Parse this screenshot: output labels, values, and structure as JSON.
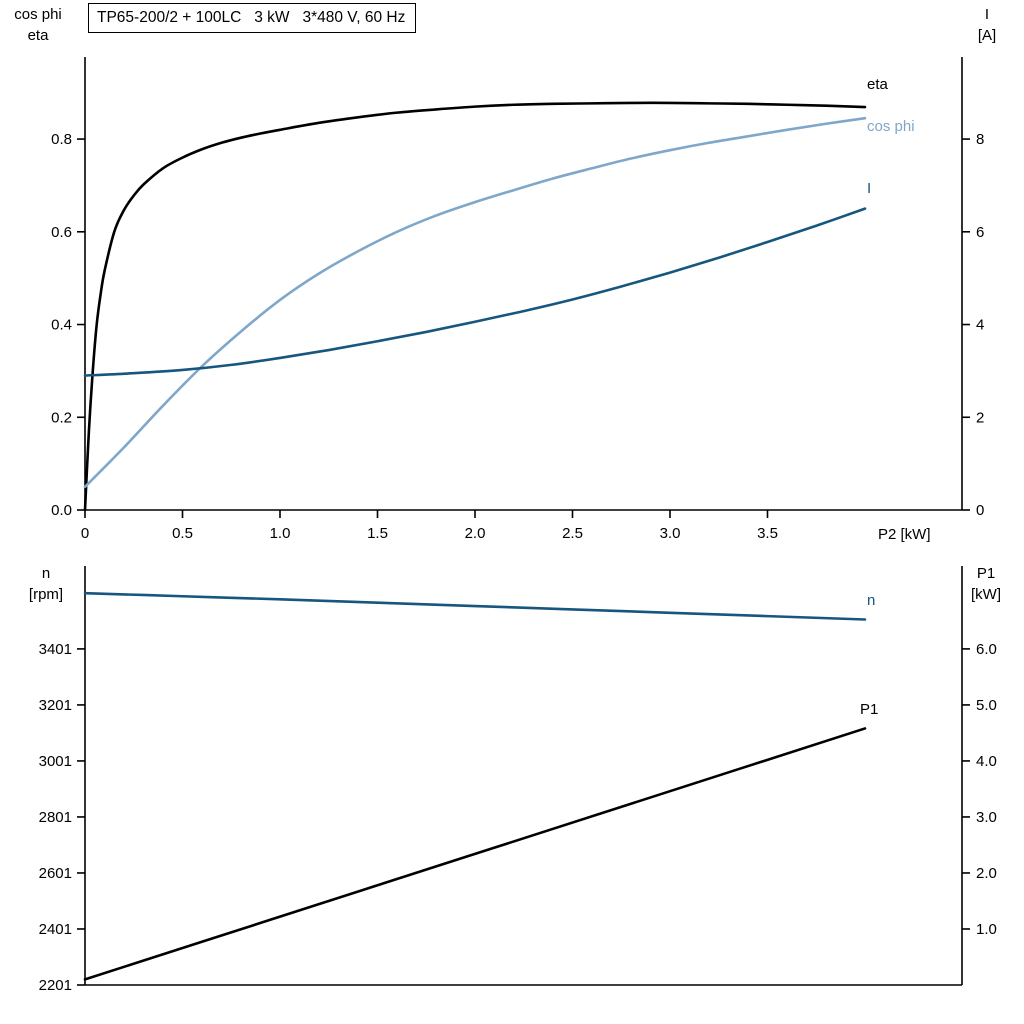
{
  "title_box": {
    "text": "TP65-200/2 + 100LC   3 kW   3*480 V, 60 Hz"
  },
  "colors": {
    "black": "#000000",
    "dark_blue": "#17567e",
    "light_blue": "#7fa7c9",
    "axis": "#000000"
  },
  "top_chart": {
    "left_axis_title": [
      "cos phi",
      "eta"
    ],
    "right_axis_title": [
      "I",
      "[A]"
    ],
    "x_axis_title": "P2 [kW]",
    "curve_labels": {
      "eta": "eta",
      "cos_phi": "cos phi",
      "current": "I"
    }
  },
  "bottom_chart": {
    "left_axis_title": [
      "n",
      "[rpm]"
    ],
    "right_axis_title": [
      "P1",
      "[kW]"
    ],
    "curve_labels": {
      "n": "n",
      "p1": "P1"
    }
  },
  "chart_data": [
    {
      "id": "top",
      "type": "line",
      "title": "TP65-200/2 + 100LC   3 kW   3*480 V, 60 Hz",
      "x_axis": {
        "label": "P2 [kW]",
        "range": [
          0,
          4.0
        ],
        "ticks": [
          0,
          0.5,
          1.0,
          1.5,
          2.0,
          2.5,
          3.0,
          3.5
        ],
        "tick_labels": [
          "0",
          "0.5",
          "1.0",
          "1.5",
          "2.0",
          "2.5",
          "3.0",
          "3.5"
        ]
      },
      "left_axis": {
        "label": "cos phi / eta",
        "range": [
          0,
          0.977
        ],
        "ticks": [
          0.0,
          0.2,
          0.4,
          0.6,
          0.8
        ],
        "tick_labels": [
          "0.0",
          "0.2",
          "0.4",
          "0.6",
          "0.8"
        ]
      },
      "right_axis": {
        "label": "I [A]",
        "range": [
          0,
          9.77
        ],
        "ticks": [
          0,
          2,
          4,
          6,
          8
        ],
        "tick_labels": [
          "0",
          "2",
          "4",
          "6",
          "8"
        ]
      },
      "legend_position": "right-of-curves",
      "grid": false,
      "series": [
        {
          "name": "eta",
          "axis": "left",
          "color": "#000000",
          "points": [
            [
              0,
              0
            ],
            [
              0.02,
              0.17
            ],
            [
              0.04,
              0.3
            ],
            [
              0.06,
              0.4
            ],
            [
              0.08,
              0.465
            ],
            [
              0.1,
              0.515
            ],
            [
              0.15,
              0.6
            ],
            [
              0.2,
              0.647
            ],
            [
              0.25,
              0.678
            ],
            [
              0.3,
              0.702
            ],
            [
              0.4,
              0.737
            ],
            [
              0.5,
              0.76
            ],
            [
              0.6,
              0.778
            ],
            [
              0.7,
              0.792
            ],
            [
              0.8,
              0.803
            ],
            [
              0.9,
              0.812
            ],
            [
              1.0,
              0.82
            ],
            [
              1.2,
              0.835
            ],
            [
              1.4,
              0.847
            ],
            [
              1.6,
              0.857
            ],
            [
              1.8,
              0.864
            ],
            [
              2.0,
              0.87
            ],
            [
              2.2,
              0.874
            ],
            [
              2.4,
              0.876
            ],
            [
              2.6,
              0.877
            ],
            [
              2.8,
              0.878
            ],
            [
              3.0,
              0.878
            ],
            [
              3.2,
              0.877
            ],
            [
              3.4,
              0.876
            ],
            [
              3.6,
              0.874
            ],
            [
              3.8,
              0.872
            ],
            [
              4.0,
              0.869
            ]
          ]
        },
        {
          "name": "cos phi",
          "axis": "left",
          "color": "#7fa7c9",
          "points": [
            [
              0,
              0.05
            ],
            [
              0.2,
              0.135
            ],
            [
              0.4,
              0.225
            ],
            [
              0.6,
              0.31
            ],
            [
              0.8,
              0.385
            ],
            [
              1.0,
              0.453
            ],
            [
              1.2,
              0.51
            ],
            [
              1.4,
              0.558
            ],
            [
              1.6,
              0.6
            ],
            [
              1.8,
              0.635
            ],
            [
              2.0,
              0.664
            ],
            [
              2.2,
              0.69
            ],
            [
              2.4,
              0.715
            ],
            [
              2.6,
              0.737
            ],
            [
              2.8,
              0.758
            ],
            [
              3.0,
              0.776
            ],
            [
              3.2,
              0.792
            ],
            [
              3.4,
              0.806
            ],
            [
              3.6,
              0.82
            ],
            [
              3.8,
              0.833
            ],
            [
              4.0,
              0.845
            ]
          ]
        },
        {
          "name": "I",
          "axis": "right",
          "color": "#17567e",
          "points": [
            [
              0,
              2.9
            ],
            [
              0.25,
              2.95
            ],
            [
              0.5,
              3.02
            ],
            [
              0.75,
              3.13
            ],
            [
              1.0,
              3.28
            ],
            [
              1.25,
              3.45
            ],
            [
              1.5,
              3.64
            ],
            [
              1.75,
              3.84
            ],
            [
              2.0,
              4.06
            ],
            [
              2.25,
              4.29
            ],
            [
              2.5,
              4.54
            ],
            [
              2.75,
              4.82
            ],
            [
              3.0,
              5.12
            ],
            [
              3.25,
              5.44
            ],
            [
              3.5,
              5.78
            ],
            [
              3.75,
              6.13
            ],
            [
              4.0,
              6.5
            ]
          ]
        }
      ]
    },
    {
      "id": "bottom",
      "type": "line",
      "title": "",
      "x_axis": {
        "label": "",
        "range": [
          0,
          4.0
        ],
        "ticks": [],
        "tick_labels": []
      },
      "left_axis": {
        "label": "n [rpm]",
        "range": [
          2201,
          3697
        ],
        "ticks": [
          3401,
          3201,
          3001,
          2801,
          2601,
          2401,
          2201
        ],
        "tick_labels": [
          "3401",
          "3201",
          "3001",
          "2801",
          "2601",
          "2401",
          "2201"
        ]
      },
      "right_axis": {
        "label": "P1 [kW]",
        "range": [
          0,
          7.48
        ],
        "ticks": [
          6.0,
          5.0,
          4.0,
          3.0,
          2.0,
          1.0
        ],
        "tick_labels": [
          "6.0",
          "5.0",
          "4.0",
          "3.0",
          "2.0",
          "1.0"
        ]
      },
      "legend_position": "right-of-curves",
      "grid": false,
      "series": [
        {
          "name": "n",
          "axis": "left",
          "color": "#17567e",
          "points": [
            [
              0,
              3600
            ],
            [
              0.5,
              3589
            ],
            [
              1.0,
              3578
            ],
            [
              1.5,
              3566
            ],
            [
              2.0,
              3554
            ],
            [
              2.5,
              3542
            ],
            [
              3.0,
              3530
            ],
            [
              3.5,
              3518
            ],
            [
              4.0,
              3506
            ]
          ]
        },
        {
          "name": "P1",
          "axis": "right",
          "color": "#000000",
          "points": [
            [
              0,
              0.1
            ],
            [
              1.0,
              1.22
            ],
            [
              2.0,
              2.34
            ],
            [
              3.0,
              3.46
            ],
            [
              4.0,
              4.58
            ]
          ]
        }
      ]
    }
  ]
}
